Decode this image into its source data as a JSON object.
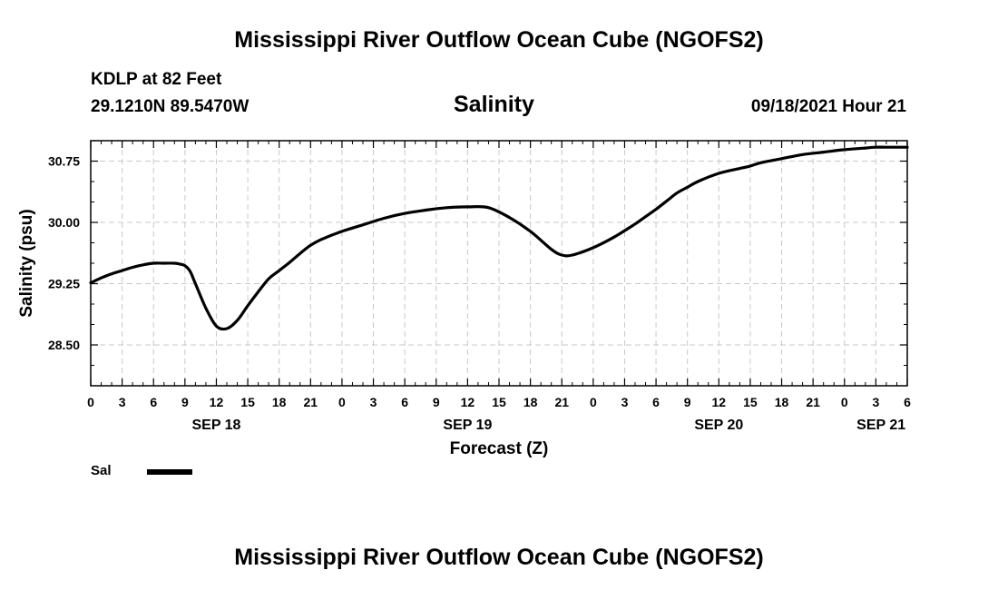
{
  "header": {
    "title": "Mississippi River Outflow Ocean Cube (NGOFS2)",
    "station": "KDLP at 82 Feet",
    "coords": "29.1210N  89.5470W",
    "parameter": "Salinity",
    "datetime": "09/18/2021 Hour 21"
  },
  "footer": {
    "title": "Mississippi River Outflow Ocean Cube (NGOFS2)"
  },
  "legend": {
    "label": "Sal"
  },
  "chart_data": {
    "type": "line",
    "title": "Salinity",
    "xlabel": "Forecast (Z)",
    "ylabel": "Salinity (psu)",
    "xlim": [
      0,
      78
    ],
    "ylim": [
      28.0,
      31.0
    ],
    "grid": true,
    "yticks": [
      28.5,
      29.25,
      30.0,
      30.75
    ],
    "ytick_labels": [
      "28.50",
      "29.25",
      "30.00",
      "30.75"
    ],
    "xticks": [
      0,
      3,
      6,
      9,
      12,
      15,
      18,
      21,
      24,
      27,
      30,
      33,
      36,
      39,
      42,
      45,
      48,
      51,
      54,
      57,
      60,
      63,
      66,
      69,
      72,
      75,
      78
    ],
    "xtick_labels": [
      "0",
      "3",
      "6",
      "9",
      "12",
      "15",
      "18",
      "21",
      "0",
      "3",
      "6",
      "9",
      "12",
      "15",
      "18",
      "21",
      "0",
      "3",
      "6",
      "9",
      "12",
      "15",
      "18",
      "21",
      "0",
      "3",
      "6"
    ],
    "date_labels": [
      {
        "x": 12,
        "label": "SEP 18"
      },
      {
        "x": 36,
        "label": "SEP 19"
      },
      {
        "x": 60,
        "label": "SEP 20"
      },
      {
        "x": 75.5,
        "label": "SEP 21"
      }
    ],
    "series": [
      {
        "name": "Sal",
        "x": [
          0,
          1,
          2,
          3,
          4,
          5,
          6,
          7,
          8,
          8.5,
          9,
          9.5,
          10,
          11,
          12,
          13,
          14,
          15,
          16,
          17,
          18,
          19,
          20,
          21,
          22,
          24,
          26,
          28,
          30,
          32,
          34,
          36,
          38,
          40,
          42,
          44,
          45,
          46,
          48,
          50,
          52,
          53,
          54,
          55,
          56,
          57,
          58,
          60,
          62,
          63,
          64,
          66,
          68,
          70,
          72,
          74,
          75,
          76,
          77,
          78
        ],
        "values": [
          29.26,
          29.32,
          29.37,
          29.41,
          29.45,
          29.48,
          29.5,
          29.5,
          29.5,
          29.49,
          29.47,
          29.4,
          29.25,
          28.95,
          28.73,
          28.7,
          28.8,
          28.98,
          29.15,
          29.31,
          29.41,
          29.51,
          29.62,
          29.72,
          29.79,
          29.89,
          29.97,
          30.05,
          30.11,
          30.15,
          30.18,
          30.19,
          30.18,
          30.06,
          29.89,
          29.67,
          29.6,
          29.6,
          29.69,
          29.82,
          29.98,
          30.07,
          30.16,
          30.26,
          30.36,
          30.43,
          30.5,
          30.6,
          30.66,
          30.69,
          30.73,
          30.78,
          30.83,
          30.86,
          30.89,
          30.91,
          30.92,
          30.92,
          30.92,
          30.92
        ]
      }
    ]
  }
}
